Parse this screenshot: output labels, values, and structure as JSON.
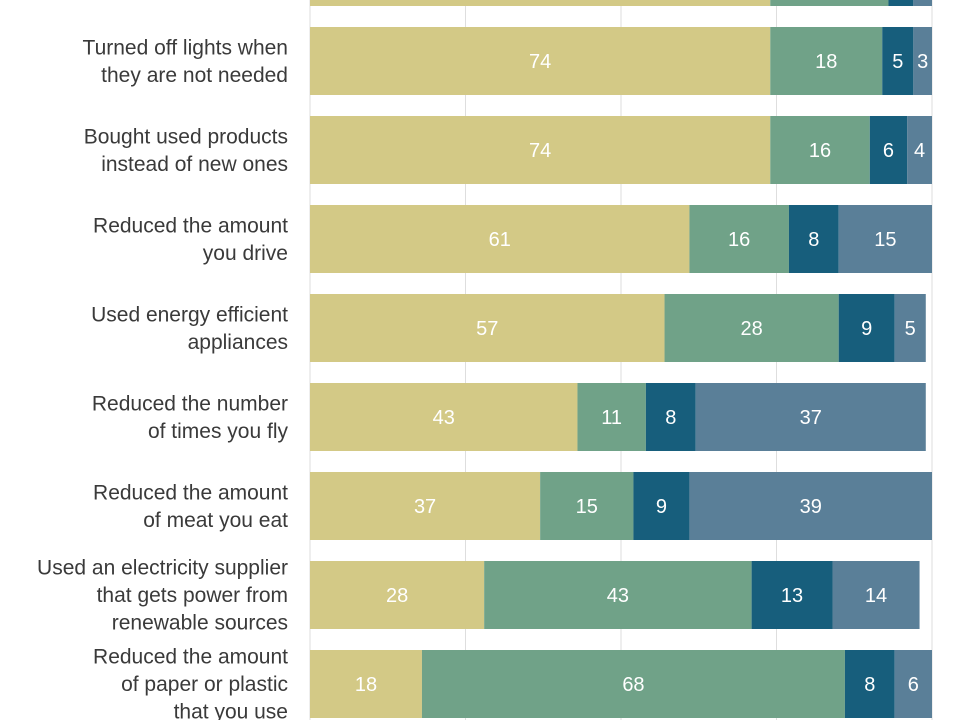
{
  "chart_data": {
    "type": "bar",
    "orientation": "horizontal",
    "stacked": true,
    "xlim": [
      0,
      100
    ],
    "grid": true,
    "categories": [
      [
        "Turned off lights when",
        "they are not needed"
      ],
      [
        "Bought used products",
        "instead of new ones"
      ],
      [
        "Reduced the amount",
        "you drive"
      ],
      [
        "Used energy efficient",
        "appliances"
      ],
      [
        "Reduced the number",
        "of times you fly"
      ],
      [
        "Reduced the amount",
        "of meat you eat"
      ],
      [
        "Used an electricity supplier",
        "that gets power from",
        "renewable sources"
      ],
      [
        "Reduced the amount",
        "of paper or plastic",
        "that you use"
      ]
    ],
    "top_partial_bar": [
      74,
      19,
      4,
      3
    ],
    "series": [
      {
        "values": [
          74,
          74,
          61,
          57,
          43,
          37,
          28,
          18
        ],
        "color": "#d3c986"
      },
      {
        "values": [
          18,
          16,
          16,
          28,
          11,
          15,
          43,
          68
        ],
        "color": "#70a288"
      },
      {
        "values": [
          5,
          6,
          8,
          9,
          8,
          9,
          13,
          8
        ],
        "color": "#175e7c"
      },
      {
        "values": [
          3,
          4,
          15,
          5,
          37,
          39,
          14,
          6
        ],
        "color": "#5a7f98"
      }
    ]
  }
}
